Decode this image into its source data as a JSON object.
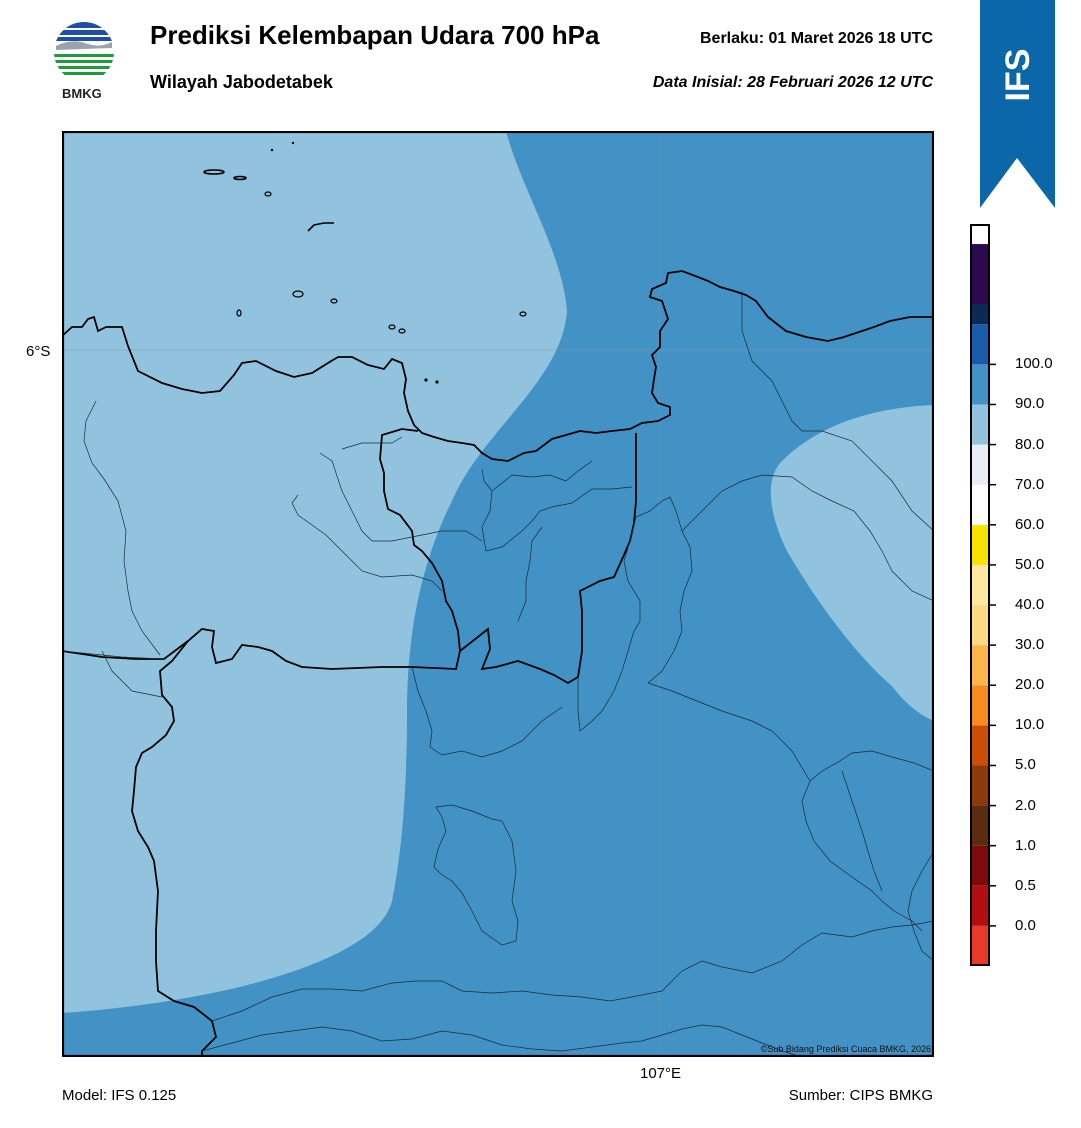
{
  "header": {
    "title": "Prediksi Kelembapan Udara 700 hPa",
    "region": "Wilayah Jabodetabek",
    "valid_label": "Berlaku:  01 Maret 2026 18 UTC",
    "init_label": "Data Inisial:  28 Februari 2026 12 UTC"
  },
  "logo": {
    "icon": "bmkg-logo",
    "text": "BMKG"
  },
  "badge": {
    "text": "IFS",
    "color": "#0b67a8"
  },
  "map": {
    "lat_label": "6°S",
    "lon_label": "107°E",
    "copyright": "©Sub Bidang Prediksi Cuaca BMKG, 2026",
    "fill_colors": {
      "band_60_70": "#92c3de",
      "band_70_80": "#4292c6"
    }
  },
  "colorbar": {
    "ticks": [
      "0.0",
      "0.5",
      "1.0",
      "2.0",
      "5.0",
      "10.0",
      "20.0",
      "30.0",
      "40.0",
      "50.0",
      "60.0",
      "70.0",
      "80.0",
      "90.0",
      "100.0"
    ],
    "colors_bottom_to_top": [
      "#e8392a",
      "#b30f13",
      "#7f0a0c",
      "#5b2c0f",
      "#8c3a0b",
      "#cb4d07",
      "#f68c1f",
      "#fdb64b",
      "#fed985",
      "#ffe79e",
      "#f7e200",
      "#ffffff",
      "#e8eef7",
      "#92c3de",
      "#4292c6",
      "#1a5aa8",
      "#0b2a55",
      "#2b0a50"
    ]
  },
  "footer": {
    "model": "Model: IFS 0.125",
    "source": "Sumber: CIPS BMKG"
  }
}
